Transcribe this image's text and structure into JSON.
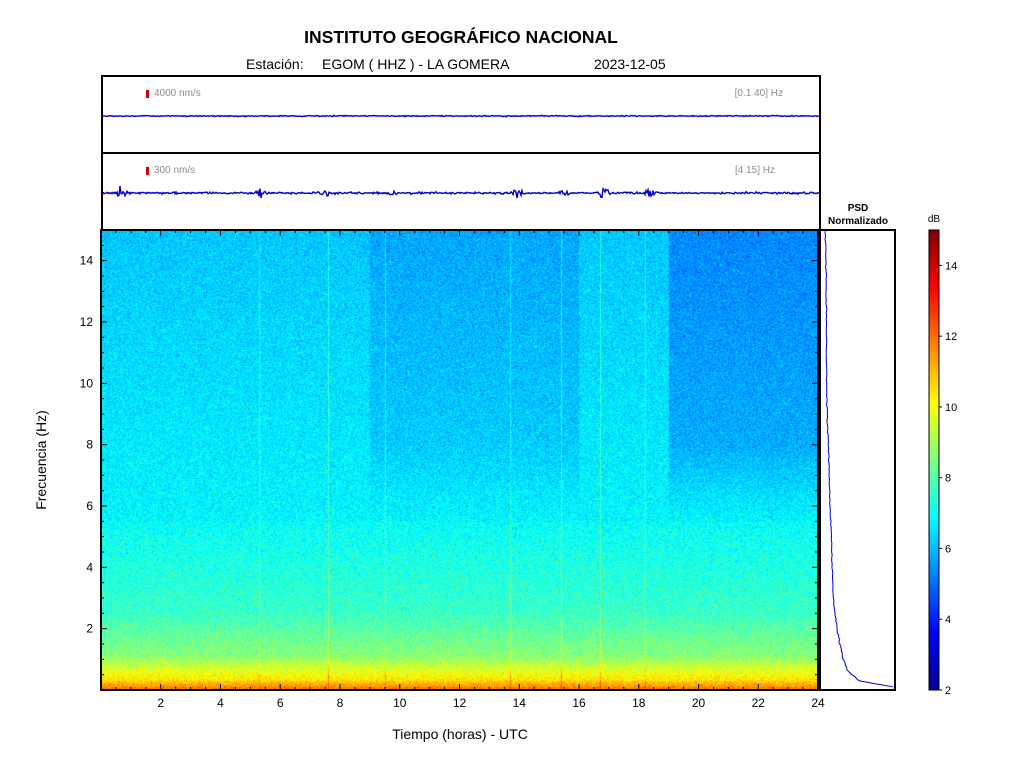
{
  "header": {
    "title": "INSTITUTO GEOGRÁFICO NACIONAL",
    "station_label": "Estación:",
    "station": "EGOM ( HHZ ) - LA GOMERA",
    "date": "2023-12-05"
  },
  "traces": [
    {
      "scale_label": "4000 nm/s",
      "band_label": "[0.1 40] Hz",
      "color": "#0000cc"
    },
    {
      "scale_label": "300 nm/s",
      "band_label": "[4 15] Hz",
      "color": "#0000cc",
      "bursts_hours": [
        0.6,
        5.3,
        7.5,
        9.7,
        13.9,
        15.5,
        16.8,
        18.3
      ]
    }
  ],
  "chart_data": {
    "type": "heatmap",
    "xlabel": "Tiempo (horas) - UTC",
    "ylabel": "Frecuencia  (Hz)",
    "x_range": [
      0,
      24
    ],
    "y_range": [
      0,
      15
    ],
    "x_ticks": [
      "2",
      "4",
      "6",
      "8",
      "10",
      "12",
      "14",
      "16",
      "18",
      "20",
      "22",
      "24"
    ],
    "y_ticks": [
      "2",
      "4",
      "6",
      "8",
      "10",
      "12",
      "14"
    ],
    "colorbar": {
      "label": "dB",
      "range": [
        2,
        15
      ],
      "ticks": [
        "2",
        "4",
        "6",
        "8",
        "10",
        "12",
        "14"
      ],
      "colors": [
        "#00008f",
        "#0000ff",
        "#0080ff",
        "#00ffff",
        "#80ff80",
        "#ffff00",
        "#ff8000",
        "#ff0000",
        "#800000"
      ]
    },
    "vertical_events_hours": [
      5.3,
      7.6,
      9.5,
      13.7,
      15.4,
      16.7,
      18.2
    ],
    "psd": {
      "title_line1": "PSD",
      "title_line2": "Normalizado",
      "frequency_hz": [
        0.1,
        0.3,
        0.6,
        1,
        1.5,
        2,
        2.5,
        3,
        4,
        5,
        6,
        7,
        8,
        9,
        10,
        11,
        12,
        13,
        14,
        15
      ],
      "normalized": [
        1.0,
        0.52,
        0.36,
        0.29,
        0.24,
        0.2,
        0.17,
        0.15,
        0.13,
        0.12,
        0.1,
        0.09,
        0.075,
        0.06,
        0.05,
        0.05,
        0.05,
        0.045,
        0.04,
        0.035
      ]
    }
  }
}
